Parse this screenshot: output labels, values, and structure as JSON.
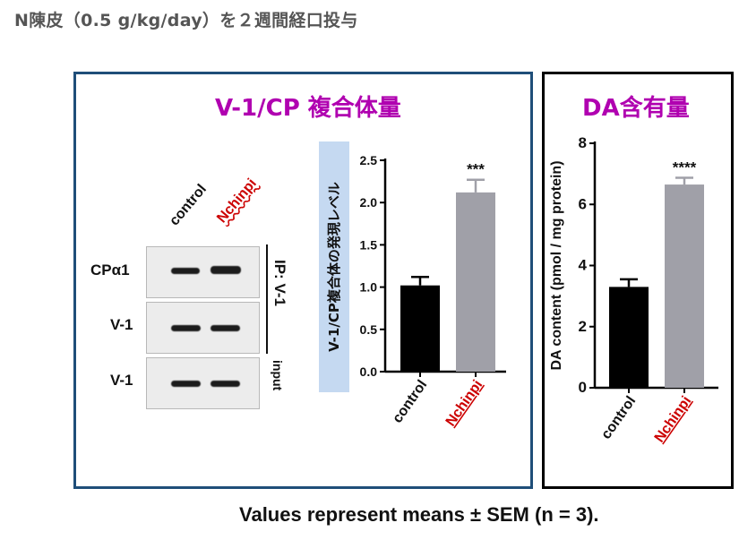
{
  "header": {
    "title": "N陳皮（0.5 g/kg/day）を２週間経口投与"
  },
  "panel_left": {
    "title": "V-1/CP 複合体量",
    "lanes": [
      "control",
      "Nchinpi"
    ],
    "blot_rows": [
      "CPα1",
      "V-1",
      "V-1"
    ],
    "bracket_label": "IP: V-1",
    "input_label": "input"
  },
  "panel_right": {
    "title": "DA含有量"
  },
  "footer": {
    "text": "Values represent means ± SEM (n = 3)."
  },
  "colors": {
    "control": "#000000",
    "nchinpi_bar": "#a0a0a8",
    "nchinpi_label": "#cc0000",
    "title": "#b000b0"
  },
  "chart_data": [
    {
      "type": "bar",
      "categories": [
        "control",
        "Nchinpi"
      ],
      "values": [
        1.02,
        2.12
      ],
      "errors": [
        0.1,
        0.15
      ],
      "significance": [
        "",
        "***"
      ],
      "ylabel": "V-1/CP複合体の発現レベル",
      "ylim": [
        0,
        2.5
      ],
      "yticks": [
        0.0,
        0.5,
        1.0,
        1.5,
        2.0,
        2.5
      ],
      "ytick_labels": [
        "0.0",
        "0.5",
        "1.0",
        "1.5",
        "2.0",
        "2.5"
      ]
    },
    {
      "type": "bar",
      "categories": [
        "control",
        "Nchinpi"
      ],
      "values": [
        3.3,
        6.65
      ],
      "errors": [
        0.25,
        0.22
      ],
      "significance": [
        "",
        "****"
      ],
      "ylabel": "DA content (pmol / mg protein)",
      "ylim": [
        0,
        8
      ],
      "yticks": [
        0,
        2,
        4,
        6,
        8
      ],
      "ytick_labels": [
        "0",
        "2",
        "4",
        "6",
        "8"
      ]
    }
  ]
}
